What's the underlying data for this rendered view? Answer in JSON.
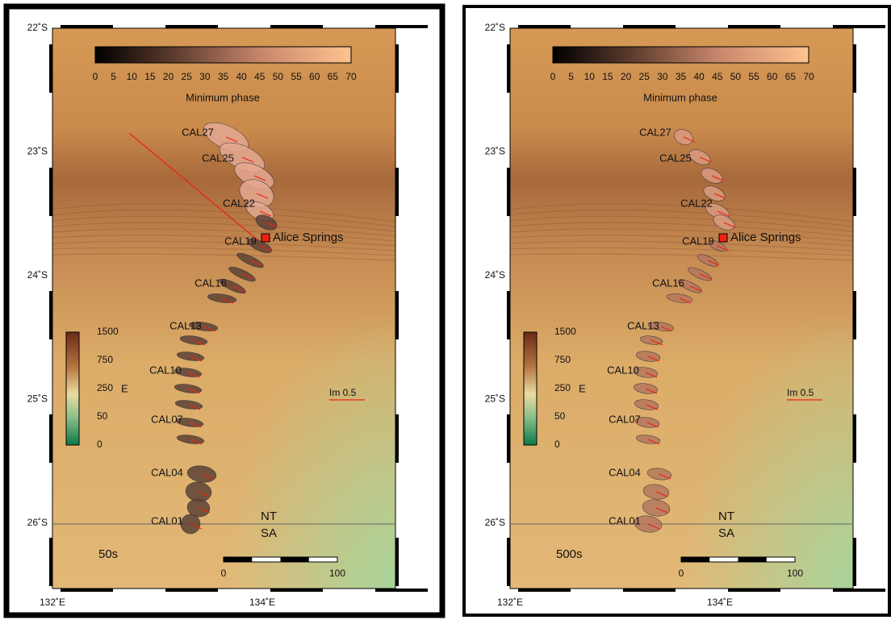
{
  "panels": [
    {
      "period": "50s",
      "lat_ticks": [
        "22˚S",
        "23˚S",
        "24˚S",
        "25˚S",
        "26˚S"
      ],
      "lon_ticks": [
        "132˚E",
        "134˚E"
      ],
      "phase_bar": {
        "ticks": [
          "0",
          "5",
          "10",
          "15",
          "20",
          "25",
          "30",
          "35",
          "40",
          "45",
          "50",
          "55",
          "60",
          "65",
          "70"
        ],
        "title": "Minimum phase"
      },
      "elev_bar": {
        "ticks": [
          "1500",
          "750",
          "250",
          "50",
          "0"
        ],
        "label": "E"
      },
      "stations": [
        "CAL27",
        "CAL25",
        "CAL22",
        "CAL19",
        "CAL16",
        "CAL13",
        "CAL10",
        "CAL07",
        "CAL04",
        "CAL01"
      ],
      "town": "Alice Springs",
      "arrow_scale": "Im 0.5",
      "states": [
        "NT",
        "SA"
      ],
      "scale_bar": [
        "0",
        "100"
      ]
    },
    {
      "period": "500s",
      "lat_ticks": [
        "22˚S",
        "23˚S",
        "24˚S",
        "25˚S",
        "26˚S"
      ],
      "lon_ticks": [
        "132˚E",
        "134˚E"
      ],
      "phase_bar": {
        "ticks": [
          "0",
          "5",
          "10",
          "15",
          "20",
          "25",
          "30",
          "35",
          "40",
          "45",
          "50",
          "55",
          "60",
          "65",
          "70"
        ],
        "title": "Minimum phase"
      },
      "elev_bar": {
        "ticks": [
          "1500",
          "750",
          "250",
          "50",
          "0"
        ],
        "label": "E"
      },
      "stations": [
        "CAL27",
        "CAL25",
        "CAL22",
        "CAL19",
        "CAL16",
        "CAL13",
        "CAL10",
        "CAL07",
        "CAL04",
        "CAL01"
      ],
      "town": "Alice Springs",
      "arrow_scale": "Im 0.5",
      "states": [
        "NT",
        "SA"
      ],
      "scale_bar": [
        "0",
        "100"
      ]
    }
  ]
}
